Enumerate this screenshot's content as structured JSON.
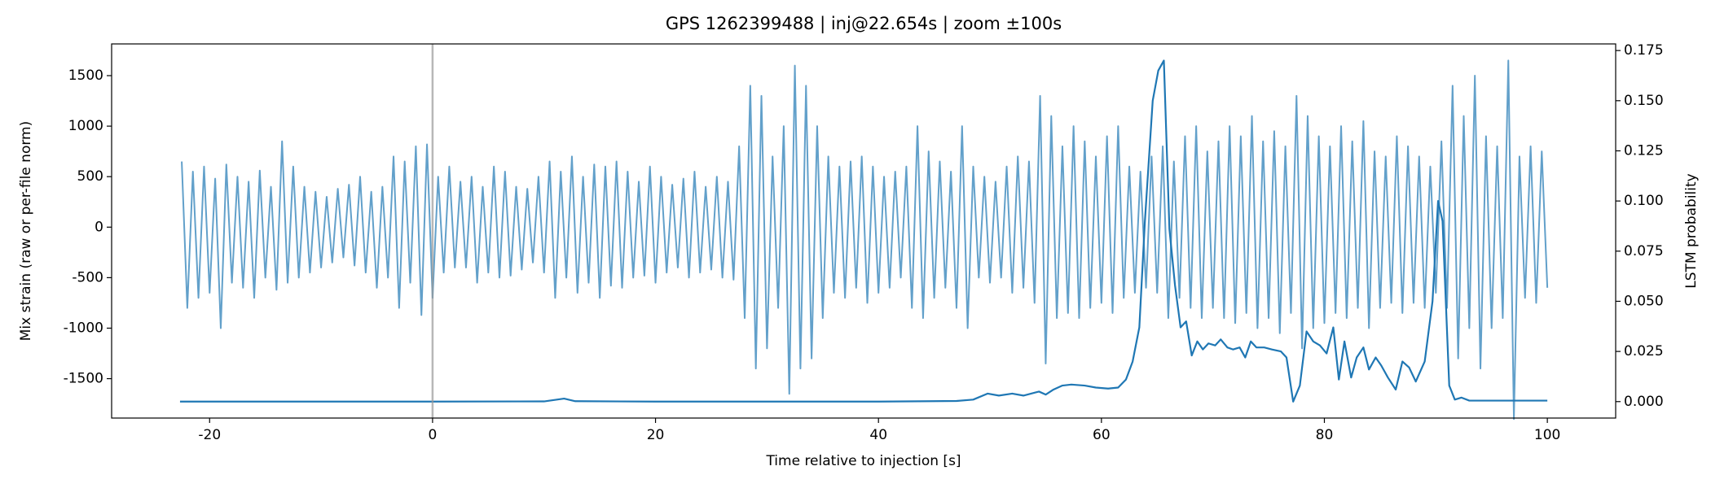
{
  "chart_data": {
    "type": "line",
    "title": "GPS 1262399488 | inj@22.654s | zoom ±100s",
    "x_label": "Time relative to injection [s]",
    "y_label": "Mix strain (raw or per-file norm)",
    "y2_label": "LSTM probability",
    "xlim": [
      -28.79,
      106.13
    ],
    "xticks": [
      -20,
      0,
      20,
      40,
      60,
      80,
      100
    ],
    "ylim": [
      -1890,
      1814
    ],
    "yticks": [
      -1500,
      -1000,
      -500,
      0,
      500,
      1000,
      1500
    ],
    "y2lim": [
      -0.0082,
      0.1783
    ],
    "y2ticks": [
      {
        "value": 0,
        "label": "0.000"
      },
      {
        "value": 0.025,
        "label": "0.025"
      },
      {
        "value": 0.05,
        "label": "0.050"
      },
      {
        "value": 0.075,
        "label": "0.075"
      },
      {
        "value": 0.1,
        "label": "0.100"
      },
      {
        "value": 0.125,
        "label": "0.125"
      },
      {
        "value": 0.15,
        "label": "0.150"
      },
      {
        "value": 0.175,
        "label": "0.175"
      }
    ],
    "vlines": [
      0
    ],
    "vline_color": "#999999",
    "grid": false,
    "series": [
      {
        "color": "#1f77b4",
        "alpha": 0.7,
        "x": [
          -22.5,
          -22,
          -21.5,
          -21,
          -20.5,
          -20,
          -19.5,
          -19,
          -18.5,
          -18,
          -17.5,
          -17,
          -16.5,
          -16,
          -15.5,
          -15,
          -14.5,
          -14,
          -13.5,
          -13,
          -12.5,
          -12,
          -11.5,
          -11,
          -10.5,
          -10,
          -9.5,
          -9,
          -8.5,
          -8,
          -7.5,
          -7,
          -6.5,
          -6,
          -5.5,
          -5,
          -4.5,
          -4,
          -3.5,
          -3,
          -2.5,
          -2,
          -1.5,
          -1,
          -0.5,
          0,
          0.5,
          1,
          1.5,
          2,
          2.5,
          3,
          3.5,
          4,
          4.5,
          5,
          5.5,
          6,
          6.5,
          7,
          7.5,
          8,
          8.5,
          9,
          9.5,
          10,
          10.5,
          11,
          11.5,
          12,
          12.5,
          13,
          13.5,
          14,
          14.5,
          15,
          15.5,
          16,
          16.5,
          17,
          17.5,
          18,
          18.5,
          19,
          19.5,
          20,
          20.5,
          21,
          21.5,
          22,
          22.5,
          23,
          23.5,
          24,
          24.5,
          25,
          25.5,
          26,
          26.5,
          27,
          27.5,
          28,
          28.5,
          29,
          29.5,
          30,
          30.5,
          31,
          31.5,
          32,
          32.5,
          33,
          33.5,
          34,
          34.5,
          35,
          35.5,
          36,
          36.5,
          37,
          37.5,
          38,
          38.5,
          39,
          39.5,
          40,
          40.5,
          41,
          41.5,
          42,
          42.5,
          43,
          43.5,
          44,
          44.5,
          45,
          45.5,
          46,
          46.5,
          47,
          47.5,
          48,
          48.5,
          49,
          49.5,
          50,
          50.5,
          51,
          51.5,
          52,
          52.5,
          53,
          53.5,
          54,
          54.5,
          55,
          55.5,
          56,
          56.5,
          57,
          57.5,
          58,
          58.5,
          59,
          59.5,
          60,
          60.5,
          61,
          61.5,
          62,
          62.5,
          63,
          63.5,
          64,
          64.5,
          65,
          65.5,
          66,
          66.5,
          67,
          67.5,
          68,
          68.5,
          69,
          69.5,
          70,
          70.5,
          71,
          71.5,
          72,
          72.5,
          73,
          73.5,
          74,
          74.5,
          75,
          75.5,
          76,
          76.5,
          77,
          77.5,
          78,
          78.5,
          79,
          79.5,
          80,
          80.5,
          81,
          81.5,
          82,
          82.5,
          83,
          83.5,
          84,
          84.5,
          85,
          85.5,
          86,
          86.5,
          87,
          87.5,
          88,
          88.5,
          89,
          89.5,
          90,
          90.5,
          91,
          91.5,
          92,
          92.5,
          93,
          93.5,
          94,
          94.5,
          95,
          95.5,
          96,
          96.5,
          97,
          97.5,
          98,
          98.5,
          99,
          99.5,
          100
        ],
        "values": [
          650,
          -800,
          550,
          -700,
          600,
          -650,
          480,
          -1000,
          620,
          -550,
          500,
          -600,
          450,
          -700,
          560,
          -500,
          400,
          -620,
          850,
          -550,
          600,
          -500,
          400,
          -450,
          350,
          -400,
          300,
          -350,
          380,
          -300,
          420,
          -380,
          500,
          -450,
          350,
          -600,
          400,
          -500,
          700,
          -800,
          650,
          -550,
          800,
          -870,
          820,
          -700,
          500,
          -450,
          600,
          -400,
          450,
          -400,
          500,
          -550,
          400,
          -450,
          600,
          -500,
          550,
          -480,
          400,
          -420,
          380,
          -350,
          500,
          -450,
          650,
          -700,
          550,
          -500,
          700,
          -650,
          500,
          -550,
          620,
          -700,
          600,
          -580,
          650,
          -600,
          550,
          -500,
          450,
          -480,
          600,
          -550,
          500,
          -450,
          420,
          -400,
          480,
          -500,
          550,
          -450,
          400,
          -420,
          500,
          -500,
          450,
          -520,
          800,
          -900,
          1400,
          -1400,
          1300,
          -1200,
          700,
          -800,
          1000,
          -1650,
          1600,
          -1400,
          1400,
          -1300,
          1000,
          -900,
          700,
          -650,
          600,
          -700,
          650,
          -600,
          700,
          -750,
          600,
          -650,
          500,
          -600,
          550,
          -500,
          600,
          -800,
          1000,
          -900,
          750,
          -700,
          650,
          -600,
          550,
          -800,
          1000,
          -1000,
          600,
          -500,
          500,
          -550,
          450,
          -500,
          600,
          -650,
          700,
          -600,
          650,
          -750,
          1300,
          -1350,
          1100,
          -900,
          800,
          -850,
          1000,
          -900,
          850,
          -800,
          700,
          -750,
          900,
          -850,
          1000,
          -700,
          600,
          -650,
          550,
          -600,
          700,
          -650,
          800,
          -900,
          650,
          -700,
          900,
          -800,
          1000,
          -900,
          750,
          -800,
          850,
          -900,
          1000,
          -950,
          900,
          -850,
          1100,
          -1000,
          850,
          -900,
          950,
          -1050,
          800,
          -850,
          1300,
          -1200,
          1100,
          -1000,
          900,
          -950,
          800,
          -850,
          1000,
          -900,
          850,
          -800,
          1050,
          -1000,
          750,
          -800,
          700,
          -750,
          900,
          -850,
          800,
          -750,
          700,
          -800,
          600,
          -650,
          850,
          -800,
          1400,
          -1300,
          1100,
          -1000,
          1500,
          -1400,
          900,
          -1000,
          800,
          -900,
          1650,
          -1900,
          700,
          -700,
          800,
          -750,
          750,
          -600
        ]
      },
      {
        "color": "#1f77b4",
        "axis": "y2",
        "x": [
          -22.654,
          0,
          10,
          11.8,
          12.8,
          20,
          40,
          47,
          48.5,
          49.8,
          50.8,
          52,
          53,
          54.4,
          55,
          55.7,
          56.5,
          57.3,
          58.5,
          59.5,
          60.6,
          61.5,
          62.2,
          62.8,
          63.4,
          63.9,
          64.6,
          65.1,
          65.6,
          66.1,
          66.6,
          67.1,
          67.6,
          68.1,
          68.6,
          69.1,
          69.6,
          70.2,
          70.7,
          71.3,
          71.8,
          72.4,
          72.9,
          73.4,
          73.9,
          74.6,
          75.3,
          76.1,
          76.6,
          77.2,
          77.8,
          78.4,
          79,
          79.6,
          80.2,
          80.8,
          81.3,
          81.8,
          82.4,
          82.9,
          83.5,
          84,
          84.6,
          85.1,
          85.7,
          86.4,
          87,
          87.6,
          88.2,
          89,
          89.7,
          90.2,
          90.6,
          91.2,
          91.7,
          92.3,
          93,
          100
        ],
        "values": [
          0,
          0,
          0.0001,
          0.0015,
          0.0002,
          0,
          0,
          0.0003,
          0.001,
          0.004,
          0.003,
          0.004,
          0.003,
          0.005,
          0.0035,
          0.006,
          0.008,
          0.0085,
          0.008,
          0.007,
          0.0065,
          0.007,
          0.011,
          0.02,
          0.037,
          0.09,
          0.15,
          0.165,
          0.17,
          0.086,
          0.058,
          0.037,
          0.04,
          0.023,
          0.03,
          0.026,
          0.029,
          0.028,
          0.031,
          0.027,
          0.026,
          0.027,
          0.022,
          0.03,
          0.027,
          0.027,
          0.026,
          0.025,
          0.022,
          0,
          0.008,
          0.035,
          0.03,
          0.028,
          0.024,
          0.037,
          0.011,
          0.03,
          0.012,
          0.022,
          0.027,
          0.016,
          0.022,
          0.018,
          0.012,
          0.006,
          0.02,
          0.017,
          0.01,
          0.02,
          0.05,
          0.1,
          0.09,
          0.008,
          0.001,
          0.002,
          0.0005,
          0.0005
        ]
      }
    ]
  }
}
